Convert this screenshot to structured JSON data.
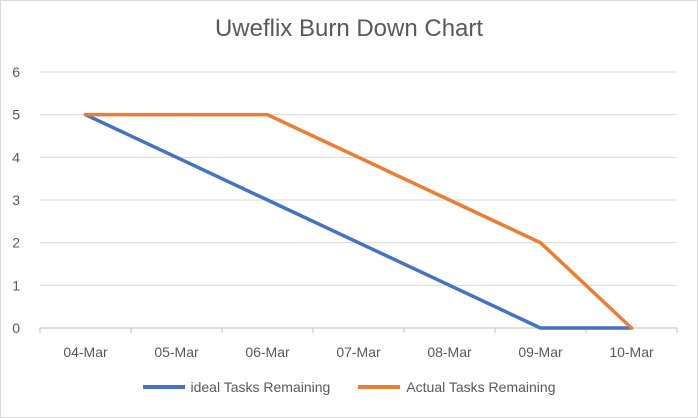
{
  "chart_data": {
    "type": "line",
    "title": "Uweflix Burn Down Chart",
    "categories": [
      "04-Mar",
      "05-Mar",
      "06-Mar",
      "07-Mar",
      "08-Mar",
      "09-Mar",
      "10-Mar"
    ],
    "series": [
      {
        "name": "ideal Tasks Remaining",
        "color": "#4472c4",
        "values": [
          5,
          4,
          3,
          2,
          1,
          0,
          0
        ]
      },
      {
        "name": "Actual Tasks Remaining",
        "color": "#ed7d31",
        "values": [
          5,
          5,
          5,
          4,
          3,
          2,
          0
        ]
      }
    ],
    "ylim": [
      0,
      6
    ],
    "yticks": [
      0,
      1,
      2,
      3,
      4,
      5,
      6
    ],
    "grid": true,
    "legend_position": "bottom"
  }
}
